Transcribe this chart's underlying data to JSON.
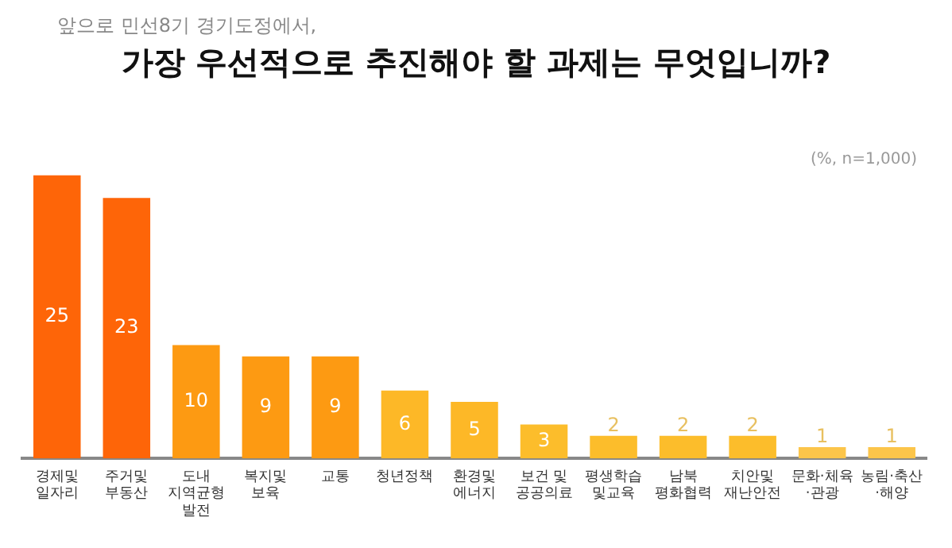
{
  "chart_data": {
    "type": "bar",
    "subtitle": "앞으로 민선8기 경기도정에서,",
    "title": "가장 우선적으로 추진해야 할 과제는 무엇입니까?",
    "annotations": [
      "(%, n=1,000)"
    ],
    "categories": [
      "경제및\n일자리",
      "주거및\n부동산",
      "도내\n지역균형\n발전",
      "복지및\n보육",
      "교통",
      "청년정책",
      "환경및\n에너지",
      "보건 및\n공공의료",
      "평생학습\n및교육",
      "남북\n평화협력",
      "치안및\n재난안전",
      "문화·체육\n·관광",
      "농림·축산\n·해양"
    ],
    "values": [
      25,
      23,
      10,
      9,
      9,
      6,
      5,
      3,
      2,
      2,
      2,
      1,
      1
    ],
    "colors": [
      "#fe6508",
      "#fe6508",
      "#fd9a12",
      "#fd9a12",
      "#fd9a12",
      "#fdb827",
      "#fdb827",
      "#fcbd2b",
      "#fcbd2b",
      "#fcbd2b",
      "#fcbd2b",
      "#fcc54a",
      "#fcc54a"
    ],
    "data_labels": true,
    "legend": false,
    "grid": false
  }
}
